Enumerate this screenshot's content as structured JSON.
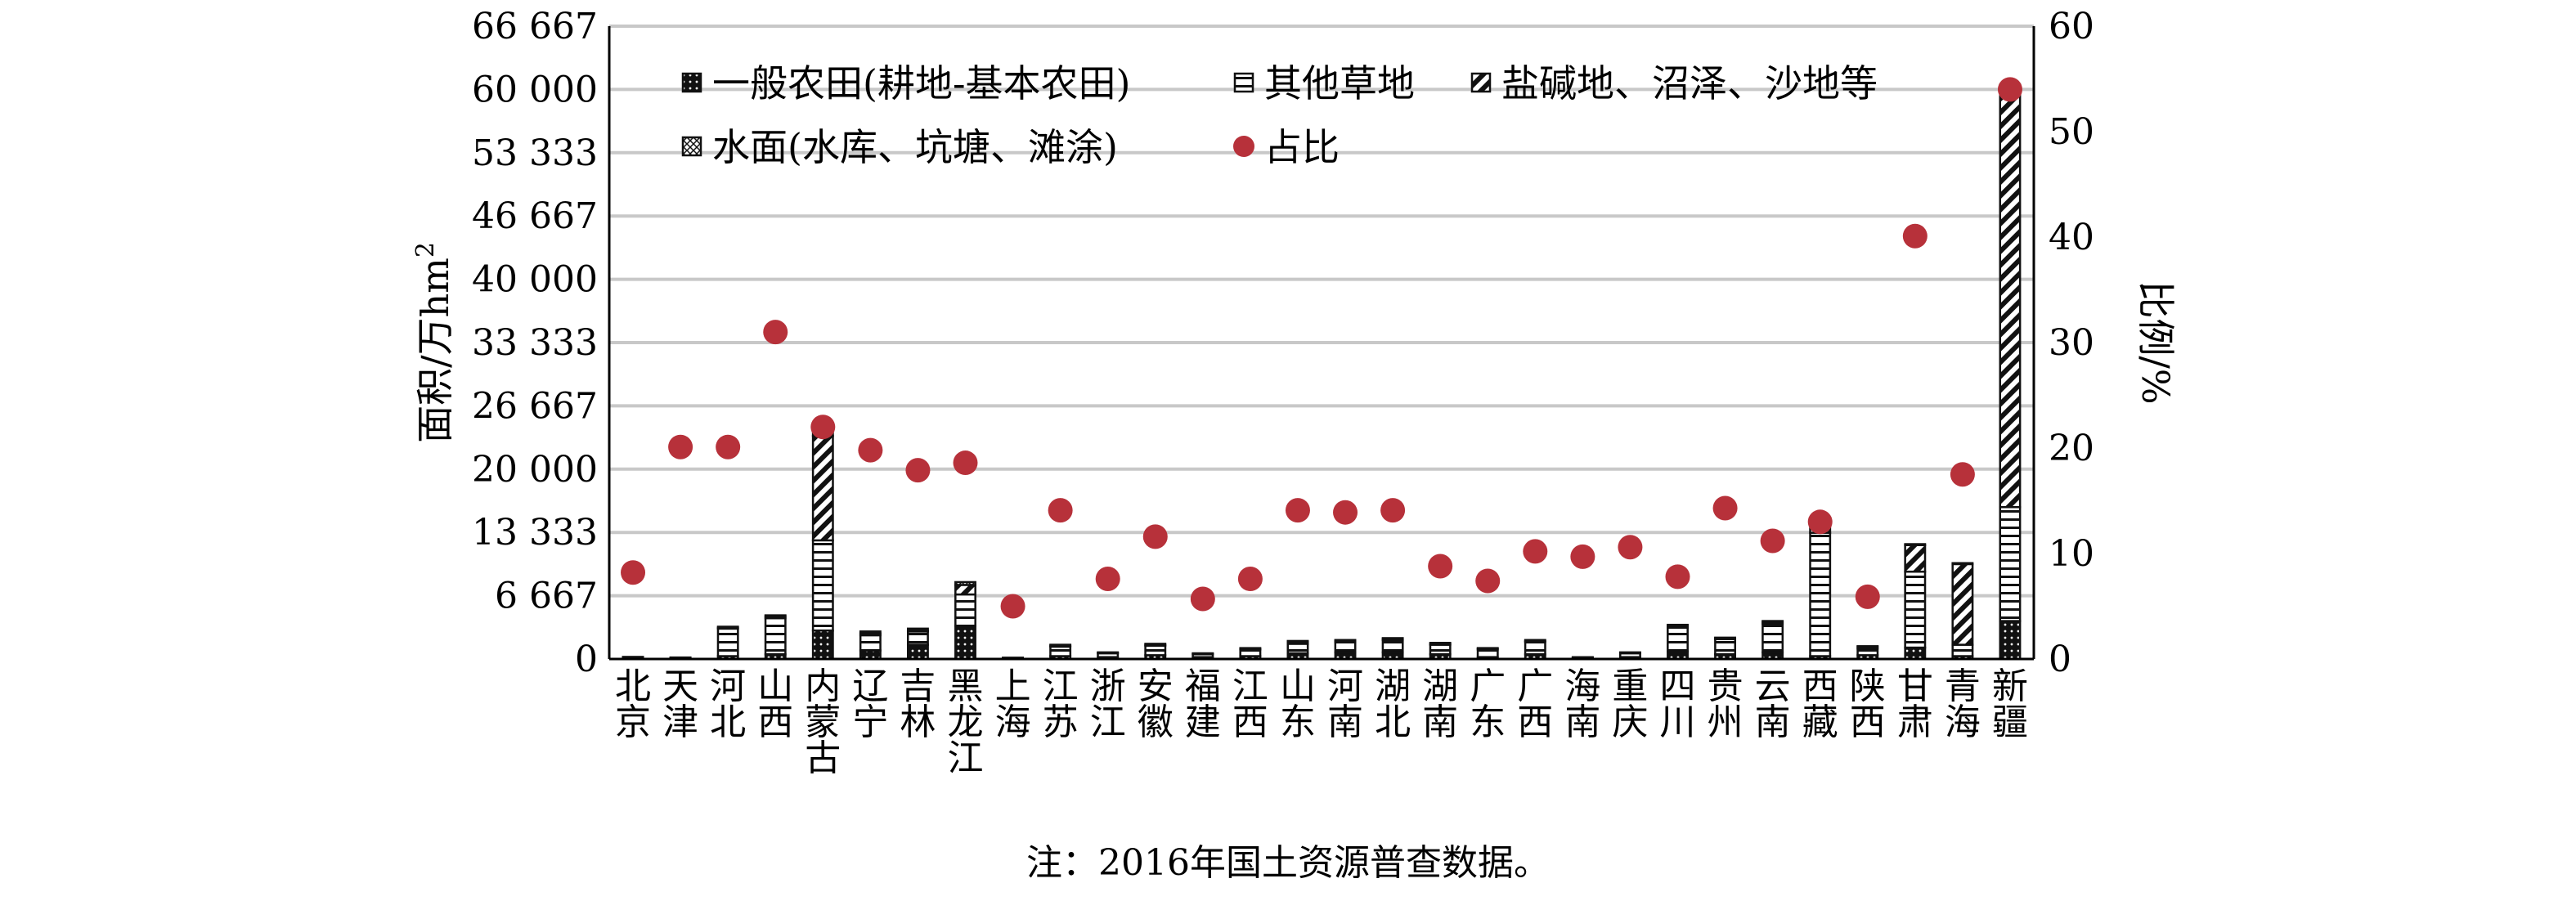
{
  "chart_data": {
    "type": "bar",
    "stacked": true,
    "categories": [
      "北京",
      "天津",
      "河北",
      "山西",
      "内蒙古",
      "辽宁",
      "吉林",
      "黑龙江",
      "上海",
      "江苏",
      "浙江",
      "安徽",
      "福建",
      "江西",
      "山东",
      "河南",
      "湖北",
      "湖南",
      "广东",
      "广西",
      "海南",
      "重庆",
      "四川",
      "贵州",
      "云南",
      "西藏",
      "陕西",
      "甘肃",
      "青海",
      "新疆"
    ],
    "series": [
      {
        "name": "一般农田(耕地-基本农田)",
        "color": "#111111",
        "pattern": "dots",
        "values": [
          50,
          40,
          300,
          500,
          3000,
          900,
          1500,
          3500,
          30,
          300,
          200,
          400,
          200,
          300,
          600,
          700,
          700,
          500,
          200,
          500,
          50,
          200,
          800,
          500,
          700,
          300,
          400,
          1200,
          300,
          4000
        ]
      },
      {
        "name": "其他草地",
        "color": "#111111",
        "pattern": "hlines",
        "values": [
          100,
          60,
          2900,
          3800,
          9500,
          1600,
          1400,
          3300,
          60,
          1000,
          400,
          1000,
          300,
          700,
          1000,
          1100,
          1300,
          1000,
          800,
          1300,
          100,
          400,
          2500,
          1600,
          3000,
          13000,
          700,
          8000,
          1200,
          12000
        ]
      },
      {
        "name": "盐碱地、沼泽、沙地等",
        "color": "#111111",
        "pattern": "diag",
        "values": [
          50,
          40,
          100,
          200,
          11000,
          200,
          100,
          1000,
          20,
          100,
          50,
          100,
          50,
          50,
          200,
          100,
          100,
          100,
          100,
          100,
          20,
          50,
          200,
          100,
          200,
          1000,
          200,
          2800,
          8500,
          44000
        ]
      },
      {
        "name": "水面(水库、坑塘、滩涂)",
        "color": "#111111",
        "pattern": "grid",
        "values": [
          20,
          20,
          100,
          100,
          500,
          200,
          200,
          300,
          30,
          100,
          50,
          100,
          50,
          100,
          100,
          100,
          100,
          100,
          50,
          100,
          20,
          50,
          100,
          50,
          100,
          100,
          50,
          100,
          100,
          500
        ]
      }
    ],
    "ratio_series": {
      "name": "占比",
      "color": "#b7313a",
      "values": [
        8.2,
        20.1,
        20.1,
        31.0,
        22.0,
        19.8,
        17.9,
        18.6,
        5.0,
        14.1,
        7.6,
        11.6,
        5.7,
        7.6,
        14.1,
        13.9,
        14.1,
        8.8,
        7.4,
        10.2,
        9.7,
        10.6,
        7.8,
        14.3,
        11.2,
        13.0,
        5.9,
        40.1,
        17.5,
        54.0
      ]
    },
    "ylabel": "面积/万hm²",
    "ylabel_main": "面积/万hm",
    "ylabel_sup": "2",
    "y2label": "比例/%",
    "ylim": [
      0,
      66667
    ],
    "yticks": [
      0,
      6667,
      13333,
      20000,
      26667,
      33333,
      40000,
      46667,
      53333,
      60000,
      66667
    ],
    "ytick_labels": [
      "0",
      "6 667",
      "13 333",
      "20 000",
      "26 667",
      "33 333",
      "40 000",
      "46 667",
      "53 333",
      "60 000",
      "66 667"
    ],
    "y2lim": [
      0,
      60
    ],
    "y2ticks": [
      0,
      10,
      20,
      30,
      40,
      50,
      60
    ],
    "y2tick_labels": [
      "0",
      "10",
      "20",
      "30",
      "40",
      "50",
      "60"
    ],
    "grid": true,
    "legend_position": "top-left",
    "note": "注：2016年国土资源普查数据。"
  }
}
